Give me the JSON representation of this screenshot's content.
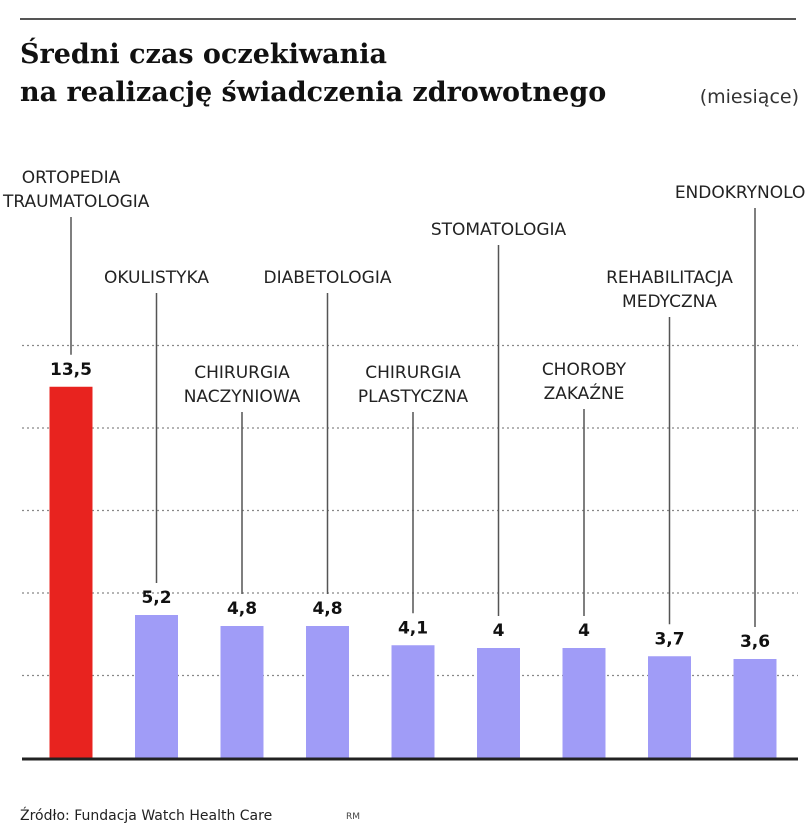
{
  "header": {
    "title_line1": "Średni czas oczekiwania",
    "title_line2": "na realizację świadczenia zdrowotnego",
    "unit": "(miesiące)"
  },
  "footer": {
    "source": "Źródło: Fundacja Watch Health Care",
    "credit": "RM"
  },
  "colors": {
    "highlight": "#e8231f",
    "bar": "#a09cf7",
    "gridline": "#888888",
    "baseline": "#222222",
    "leader": "#555555"
  },
  "chart_data": {
    "type": "bar",
    "title": "Średni czas oczekiwania na realizację świadczenia zdrowotnego",
    "ylabel": "(miesiące)",
    "xlabel": "",
    "ylim": [
      0,
      15
    ],
    "grid": true,
    "categories": [
      [
        "ORTOPEDIA",
        "I TRAUMATOLOGIA"
      ],
      [
        "OKULISTYKA"
      ],
      [
        "CHIRURGIA",
        "NACZYNIOWA"
      ],
      [
        "DIABETOLOGIA"
      ],
      [
        "CHIRURGIA",
        "PLASTYCZNA"
      ],
      [
        "STOMATOLOGIA"
      ],
      [
        "CHOROBY",
        "ZAKAŹNE"
      ],
      [
        "REHABILITACJA",
        "MEDYCZNA"
      ],
      [
        "ENDOKRYNOLOGIA"
      ]
    ],
    "values": [
      13.5,
      5.2,
      4.8,
      4.8,
      4.1,
      4,
      4,
      3.7,
      3.6
    ],
    "value_labels": [
      "13,5",
      "5,2",
      "4,8",
      "4,8",
      "4,1",
      "4",
      "4",
      "3,7",
      "3,6"
    ],
    "highlight_index": 0
  }
}
